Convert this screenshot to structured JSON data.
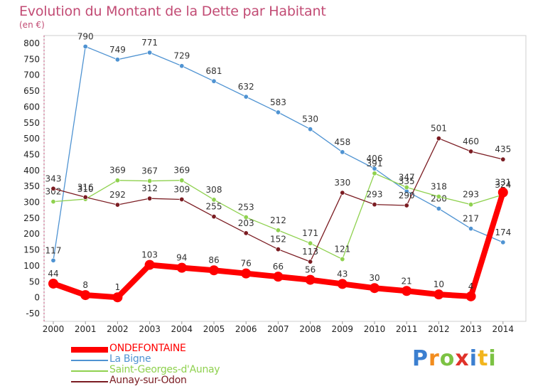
{
  "title": "Evolution du Montant de la Dette par Habitant",
  "unit_label": "(en €)",
  "logo": {
    "text": "Proxiti",
    "letters": [
      {
        "ch": "P",
        "color": "#3b7fd0"
      },
      {
        "ch": "r",
        "color": "#f28c1e"
      },
      {
        "ch": "o",
        "color": "#7cc243"
      },
      {
        "ch": "x",
        "color": "#e0322a"
      },
      {
        "ch": "i",
        "color": "#3b7fd0"
      },
      {
        "ch": "t",
        "color": "#f2b51e"
      },
      {
        "ch": "i",
        "color": "#7cc243"
      }
    ]
  },
  "chart_data": {
    "type": "line",
    "title": "Evolution du Montant de la Dette par Habitant",
    "ylabel": "(en €)",
    "xlabel": "",
    "x": [
      "2000",
      "2001",
      "2002",
      "2003",
      "2004",
      "2005",
      "2006",
      "2007",
      "2008",
      "2009",
      "2010",
      "2011",
      "2012",
      "2013",
      "2014"
    ],
    "ylim": [
      -50,
      800
    ],
    "yticks": [
      -50,
      0,
      50,
      100,
      150,
      200,
      250,
      300,
      350,
      400,
      450,
      500,
      550,
      600,
      650,
      700,
      750,
      800
    ],
    "grid": false,
    "legend_position": "bottom-left",
    "series": [
      {
        "name": "ONDEFONTAINE",
        "color": "#ff0000",
        "emphasis": true,
        "values": [
          44,
          8,
          1,
          103,
          94,
          86,
          76,
          66,
          56,
          43,
          30,
          21,
          10,
          4,
          331
        ],
        "labels": [
          "44",
          "8",
          "1",
          "103",
          "94",
          "86",
          "76",
          "66",
          "56",
          "43",
          "30",
          "21",
          "10",
          "4",
          "331"
        ]
      },
      {
        "name": "La Bigne",
        "color": "#4f93d2",
        "emphasis": false,
        "values": [
          117,
          790,
          749,
          771,
          729,
          681,
          632,
          583,
          530,
          458,
          406,
          335,
          280,
          217,
          174
        ],
        "labels": [
          "117",
          "790",
          "749",
          "771",
          "729",
          "681",
          "632",
          "583",
          "530",
          "458",
          "406",
          "335",
          "280",
          "217",
          "174"
        ]
      },
      {
        "name": "Saint-Georges-d'Aunay",
        "color": "#8fd14f",
        "emphasis": false,
        "values": [
          302,
          310,
          369,
          367,
          369,
          308,
          253,
          212,
          171,
          121,
          391,
          347,
          318,
          293,
          324
        ],
        "labels": [
          "302",
          "310",
          "369",
          "367",
          "369",
          "308",
          "253",
          "212",
          "171",
          "121",
          "391",
          "347",
          "318",
          "293",
          "324"
        ]
      },
      {
        "name": "Aunay-sur-Odon",
        "color": "#7b1c22",
        "emphasis": false,
        "values": [
          343,
          316,
          292,
          312,
          309,
          255,
          203,
          152,
          113,
          330,
          293,
          290,
          501,
          460,
          435
        ],
        "labels": [
          "343",
          "316",
          "292",
          "312",
          "309",
          "255",
          "203",
          "152",
          "113",
          "330",
          "293",
          "290",
          "501",
          "460",
          "435"
        ]
      }
    ]
  }
}
